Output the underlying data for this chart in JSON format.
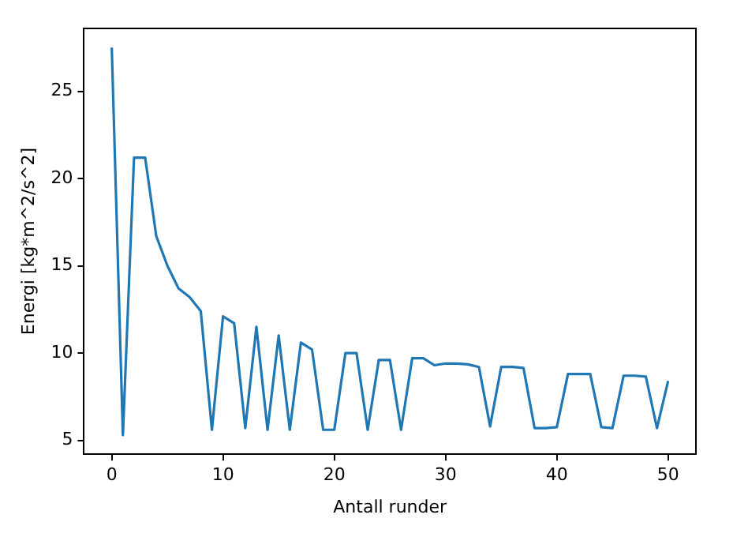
{
  "chart_data": {
    "type": "line",
    "xlabel": "Antall runder",
    "ylabel": "Energi [kg*m^2/s^2]",
    "color": "#1f77b4",
    "x": [
      0,
      1,
      2,
      3,
      4,
      5,
      6,
      7,
      8,
      9,
      10,
      11,
      12,
      13,
      14,
      15,
      16,
      17,
      18,
      19,
      20,
      21,
      22,
      23,
      24,
      25,
      26,
      27,
      28,
      29,
      30,
      31,
      32,
      33,
      34,
      35,
      36,
      37,
      38,
      39,
      40,
      41,
      42,
      43,
      44,
      45,
      46,
      47,
      48,
      49,
      50
    ],
    "values": [
      27.5,
      5.3,
      21.2,
      21.2,
      16.7,
      15,
      13.7,
      13.2,
      12.4,
      5.6,
      12.1,
      11.7,
      5.7,
      11.5,
      5.6,
      11,
      5.6,
      10.6,
      10.2,
      5.6,
      5.6,
      10,
      10,
      5.6,
      9.6,
      9.6,
      5.6,
      9.7,
      9.7,
      9.3,
      9.4,
      9.4,
      9.35,
      9.2,
      5.8,
      9.2,
      9.2,
      9.15,
      5.7,
      5.7,
      5.75,
      8.8,
      8.8,
      8.8,
      5.75,
      5.7,
      8.7,
      8.7,
      8.65,
      5.7,
      8.4
    ],
    "xlim": [
      -2.5,
      52.5
    ],
    "ylim": [
      4.2,
      28.6
    ],
    "xticks": [
      0,
      10,
      20,
      30,
      40,
      50
    ],
    "yticks": [
      5,
      10,
      15,
      20,
      25
    ],
    "grid": false,
    "legend": false,
    "marker": "none",
    "line_style": "solid"
  }
}
